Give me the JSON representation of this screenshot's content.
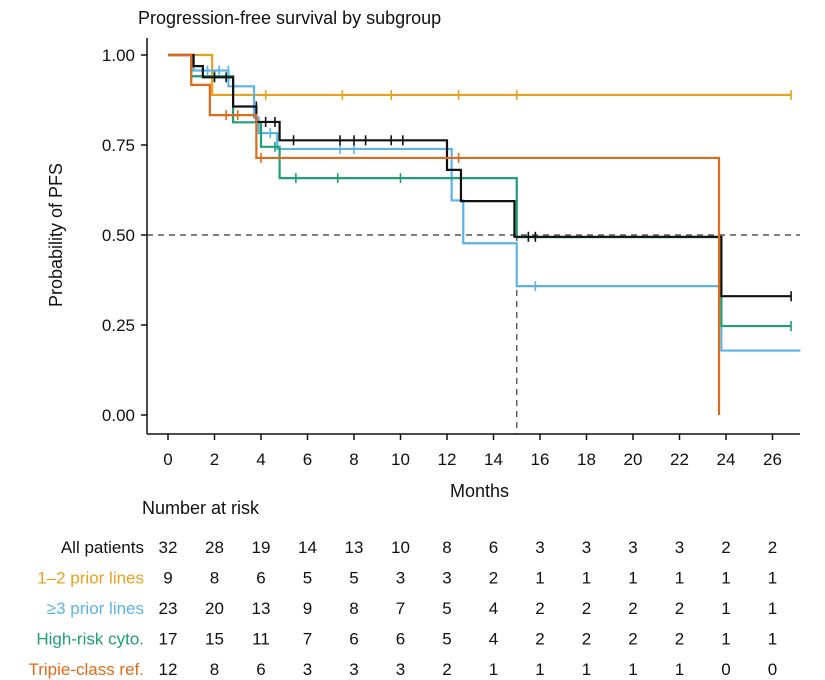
{
  "chart_data": {
    "type": "line",
    "subtype": "kaplan-meier",
    "title": "Progression-free survival by subgroup",
    "xlabel": "Months",
    "ylabel": "Probability of PFS",
    "xlim": [
      -1,
      27.2
    ],
    "ylim": [
      0,
      1
    ],
    "x_ticks": [
      0,
      2,
      4,
      6,
      8,
      10,
      12,
      14,
      16,
      18,
      20,
      22,
      24,
      26
    ],
    "y_ticks": [
      0.0,
      0.25,
      0.5,
      0.75,
      1.0
    ],
    "y_tick_labels": [
      "0.00",
      "0.25",
      "0.50",
      "0.75",
      "1.00"
    ],
    "grid": false,
    "reference_lines": [
      {
        "type": "horizontal",
        "y": 0.5,
        "style": "dashed",
        "color": "#555555"
      },
      {
        "type": "vertical",
        "x": 15,
        "y_to": 0.5,
        "style": "dashed",
        "color": "#555555"
      }
    ],
    "series": [
      {
        "name": "1–2 prior lines",
        "color": "#e5a21d",
        "steps": [
          [
            0,
            1.0
          ],
          [
            1.9,
            0.889
          ],
          [
            26.8,
            0.889
          ]
        ],
        "censors": [
          [
            4.2,
            0.889
          ],
          [
            7.5,
            0.889
          ],
          [
            9.6,
            0.889
          ],
          [
            12.5,
            0.889
          ],
          [
            15.0,
            0.889
          ],
          [
            26.8,
            0.889
          ]
        ]
      },
      {
        "name": "≥3 prior lines",
        "color": "#5bb3e6",
        "steps": [
          [
            0,
            1.0
          ],
          [
            1.1,
            0.957
          ],
          [
            2.6,
            0.913
          ],
          [
            3.7,
            0.826
          ],
          [
            3.9,
            0.783
          ],
          [
            4.7,
            0.739
          ],
          [
            12.2,
            0.596
          ],
          [
            12.7,
            0.477
          ],
          [
            15.0,
            0.358
          ],
          [
            23.8,
            0.179
          ],
          [
            27.2,
            0.179
          ]
        ],
        "censors": [
          [
            1.7,
            0.957
          ],
          [
            2.2,
            0.957
          ],
          [
            2.6,
            0.957
          ],
          [
            4.4,
            0.783
          ],
          [
            7.4,
            0.739
          ],
          [
            8.0,
            0.739
          ],
          [
            15.8,
            0.358
          ]
        ]
      },
      {
        "name": "High-risk cyto.",
        "color": "#1f9e77",
        "steps": [
          [
            0,
            1.0
          ],
          [
            1.0,
            0.941
          ],
          [
            2.8,
            0.813
          ],
          [
            4.0,
            0.745
          ],
          [
            4.8,
            0.658
          ],
          [
            15.0,
            0.494
          ],
          [
            23.8,
            0.247
          ],
          [
            26.8,
            0.247
          ]
        ],
        "censors": [
          [
            2.0,
            0.941
          ],
          [
            4.6,
            0.745
          ],
          [
            5.5,
            0.658
          ],
          [
            7.3,
            0.658
          ],
          [
            10.0,
            0.658
          ],
          [
            26.8,
            0.247
          ]
        ]
      },
      {
        "name": "All patients",
        "color": "#111111",
        "steps": [
          [
            0,
            1.0
          ],
          [
            1.1,
            0.969
          ],
          [
            1.5,
            0.938
          ],
          [
            2.8,
            0.857
          ],
          [
            3.8,
            0.814
          ],
          [
            4.8,
            0.763
          ],
          [
            12.0,
            0.681
          ],
          [
            12.6,
            0.594
          ],
          [
            14.9,
            0.495
          ],
          [
            23.8,
            0.33
          ],
          [
            26.8,
            0.33
          ]
        ],
        "censors": [
          [
            2.0,
            0.938
          ],
          [
            2.5,
            0.938
          ],
          [
            3.8,
            0.857
          ],
          [
            4.2,
            0.814
          ],
          [
            4.6,
            0.814
          ],
          [
            5.4,
            0.763
          ],
          [
            7.4,
            0.763
          ],
          [
            8.0,
            0.763
          ],
          [
            8.5,
            0.763
          ],
          [
            9.6,
            0.763
          ],
          [
            10.1,
            0.763
          ],
          [
            15.5,
            0.495
          ],
          [
            15.8,
            0.495
          ],
          [
            26.8,
            0.33
          ]
        ]
      },
      {
        "name": "Tripie-class ref.",
        "color": "#e06a1b",
        "steps": [
          [
            0,
            1.0
          ],
          [
            0.1,
            1.0
          ],
          [
            1.0,
            0.917
          ],
          [
            1.8,
            0.833
          ],
          [
            3.8,
            0.714
          ],
          [
            23.7,
            0.0
          ]
        ],
        "censors": [
          [
            2.5,
            0.833
          ],
          [
            3.0,
            0.833
          ],
          [
            4.0,
            0.714
          ],
          [
            12.5,
            0.714
          ]
        ]
      }
    ],
    "risk_table": {
      "title": "Number at risk",
      "time_points": [
        0,
        2,
        4,
        6,
        8,
        10,
        12,
        14,
        16,
        18,
        20,
        22,
        24,
        26
      ],
      "rows": [
        {
          "label": "All patients",
          "color": "#111111",
          "values": [
            "32",
            "28",
            "19",
            "14",
            "13",
            "10",
            "8",
            "6",
            "3",
            "3",
            "3",
            "3",
            "2",
            "2"
          ]
        },
        {
          "label": "1–2 prior lines",
          "color": "#e5a21d",
          "values": [
            "9",
            "8",
            "6",
            "5",
            "5",
            "3",
            "3",
            "2",
            "1",
            "1",
            "1",
            "1",
            "1",
            "1"
          ]
        },
        {
          "label": "≥3 prior lines",
          "color": "#5bb3e6",
          "values": [
            "23",
            "20",
            "13",
            "9",
            "8",
            "7",
            "5",
            "4",
            "2",
            "2",
            "2",
            "2",
            "1",
            "1"
          ]
        },
        {
          "label": "High-risk cyto.",
          "color": "#1f9e77",
          "values": [
            "17",
            "15",
            "11",
            "7",
            "6",
            "6",
            "5",
            "4",
            "2",
            "2",
            "2",
            "2",
            "1",
            "1"
          ]
        },
        {
          "label": "Tripie-class ref.",
          "color": "#e06a1b",
          "values": [
            "12",
            "8",
            "6",
            "3",
            "3",
            "3",
            "2",
            "1",
            "1",
            "1",
            "1",
            "1",
            "0",
            "0"
          ]
        }
      ]
    }
  }
}
